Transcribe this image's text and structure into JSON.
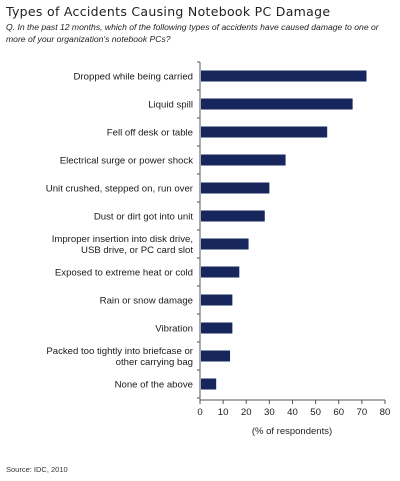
{
  "chart_data": {
    "type": "bar",
    "orientation": "horizontal",
    "title": "Types of Accidents Causing Notebook PC Damage",
    "question_prefix": "Q.",
    "question": "In the past 12 months, which of the following types of accidents have caused damage to one or more of your organization's notebook PCs?",
    "categories": [
      "Dropped while being carried",
      "Liquid spill",
      "Fell off desk or table",
      "Electrical surge or power shock",
      "Unit crushed, stepped on, run over",
      "Dust or dirt got into unit",
      "Improper insertion into disk drive, USB drive, or PC card slot",
      "Exposed to extreme heat or cold",
      "Rain or snow damage",
      "Vibration",
      "Packed too tightly into briefcase or other carrying bag",
      "None of the above"
    ],
    "category_lines": [
      [
        "Dropped while being carried"
      ],
      [
        "Liquid spill"
      ],
      [
        "Fell off desk or table"
      ],
      [
        "Electrical surge or power shock"
      ],
      [
        "Unit crushed, stepped on, run over"
      ],
      [
        "Dust or dirt got into unit"
      ],
      [
        "Improper insertion into disk drive,",
        "USB drive, or PC card slot"
      ],
      [
        "Exposed to extreme heat or cold"
      ],
      [
        "Rain or snow damage"
      ],
      [
        "Vibration"
      ],
      [
        "Packed too tightly into briefcase or",
        "other carrying bag"
      ],
      [
        "None of the above"
      ]
    ],
    "values": [
      72,
      66,
      55,
      37,
      30,
      28,
      21,
      17,
      14,
      14,
      13,
      7
    ],
    "xlabel": "(% of respondents)",
    "xlim": [
      0,
      80
    ],
    "xticks": [
      0,
      10,
      20,
      30,
      40,
      50,
      60,
      70,
      80
    ],
    "grid": false,
    "bar_color": "#17275e"
  },
  "source": "Source: IDC, 2010"
}
